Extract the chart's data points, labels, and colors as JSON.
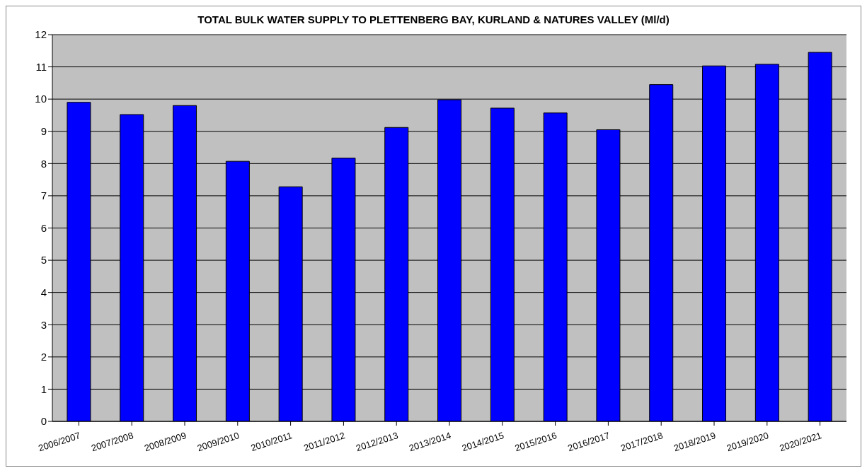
{
  "chart_data": {
    "type": "bar",
    "title": "TOTAL BULK WATER SUPPLY TO PLETTENBERG BAY, KURLAND & NATURES VALLEY (Ml/d)",
    "categories": [
      "2006/2007",
      "2007/2008",
      "2008/2009",
      "2009/2010",
      "2010/2011",
      "2011/2012",
      "2012/2013",
      "2013/2014",
      "2014/2015",
      "2015/2016",
      "2016/2017",
      "2017/2018",
      "2018/2019",
      "2019/2020",
      "2020/2021"
    ],
    "values": [
      9.9,
      9.52,
      9.8,
      8.07,
      7.28,
      8.17,
      9.12,
      9.98,
      9.72,
      9.57,
      9.05,
      10.45,
      11.03,
      11.08,
      11.45
    ],
    "color": "#0000ff",
    "ylim": [
      0,
      12
    ],
    "yticks": [
      0,
      1,
      2,
      3,
      4,
      5,
      6,
      7,
      8,
      9,
      10,
      11,
      12
    ],
    "grid": "y"
  }
}
